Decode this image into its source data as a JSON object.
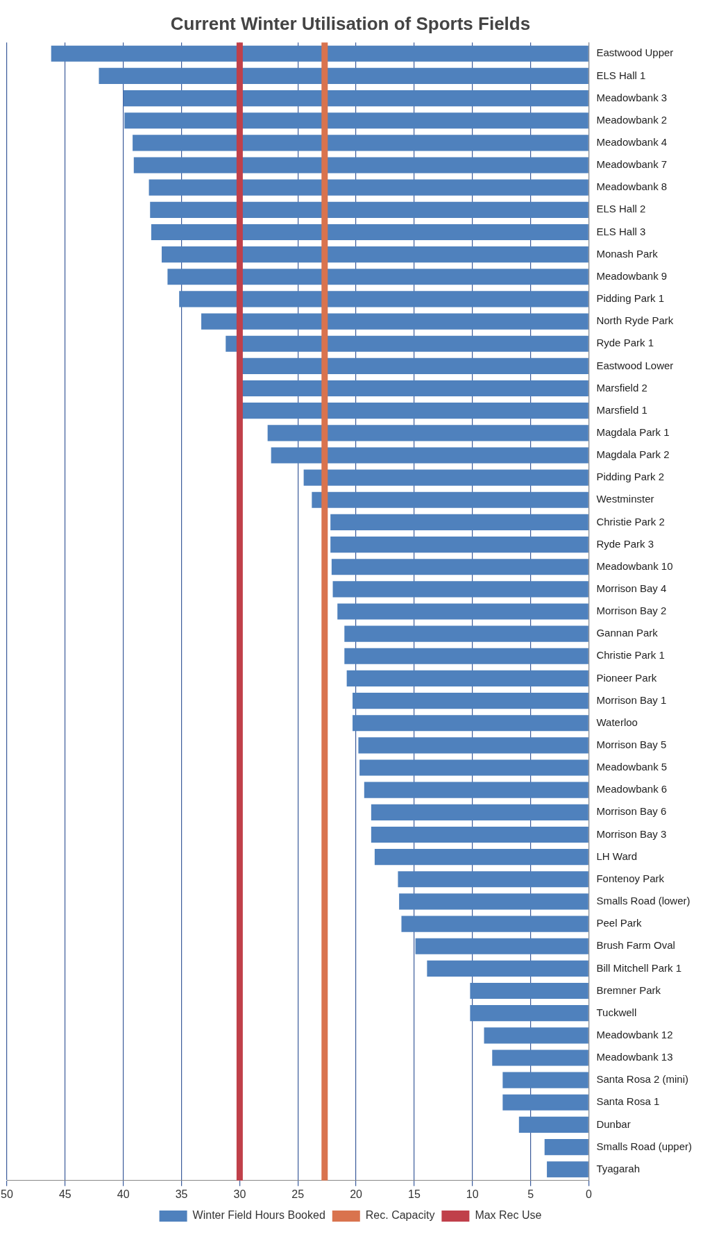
{
  "chart_data": {
    "type": "bar",
    "title": "Current Winter Utilisation of Sports Fields",
    "orientation": "horizontal",
    "categories": [
      "Eastwood Upper",
      "ELS Hall 1",
      "Meadowbank 3",
      "Meadowbank 2",
      "Meadowbank 4",
      "Meadowbank 7",
      "Meadowbank 8",
      "ELS Hall 2",
      "ELS Hall 3",
      "Monash Park",
      "Meadowbank 9",
      "Pidding Park 1",
      "North Ryde Park",
      "Ryde Park 1",
      "Eastwood Lower",
      "Marsfield 2",
      "Marsfield 1",
      "Magdala Park 1",
      "Magdala Park 2",
      "Pidding Park 2",
      "Westminster",
      "Christie Park 2",
      "Ryde Park 3",
      "Meadowbank 10",
      "Morrison Bay 4",
      "Morrison Bay 2",
      "Gannan Park",
      "Christie Park 1",
      "Pioneer Park",
      "Morrison Bay 1",
      "Waterloo",
      "Morrison Bay 5",
      "Meadowbank 5",
      "Meadowbank 6",
      "Morrison Bay 6",
      "Morrison Bay 3",
      "LH Ward",
      "Fontenoy Park",
      "Smalls Road (lower)",
      "Peel Park",
      "Brush Farm Oval",
      "Bill Mitchell Park 1",
      "Bremner Park",
      "Tuckwell",
      "Meadowbank 12",
      "Meadowbank 13",
      "Santa Rosa 2 (mini)",
      "Santa Rosa 1",
      "Dunbar",
      "Smalls Road (upper)",
      "Tyagarah"
    ],
    "series": [
      {
        "name": "Winter Field Hours Booked",
        "color": "#4f81bd",
        "values": [
          46.2,
          42.1,
          40.0,
          39.9,
          39.2,
          39.1,
          37.8,
          37.7,
          37.6,
          36.7,
          36.2,
          35.2,
          33.3,
          31.2,
          29.8,
          29.8,
          29.8,
          27.6,
          27.3,
          24.5,
          23.8,
          22.2,
          22.2,
          22.1,
          22.0,
          21.6,
          21.0,
          21.0,
          20.8,
          20.3,
          20.3,
          19.8,
          19.7,
          19.3,
          18.7,
          18.7,
          18.4,
          16.4,
          16.3,
          16.1,
          14.9,
          13.9,
          10.2,
          10.2,
          9.0,
          8.3,
          7.4,
          7.4,
          6.0,
          3.8,
          3.6
        ]
      }
    ],
    "ref_lines": [
      {
        "axis": "x",
        "value": 22.7,
        "label": "Rec. Capacity",
        "color": "#d9734e"
      },
      {
        "axis": "x",
        "value": 30,
        "label": "Max Rec Use",
        "color": "#c0404a"
      }
    ],
    "xlim": [
      50,
      0
    ],
    "xticks": [
      0,
      5,
      10,
      15,
      20,
      25,
      30,
      35,
      40,
      45,
      50
    ],
    "grid": "x",
    "legend": "bottom"
  }
}
